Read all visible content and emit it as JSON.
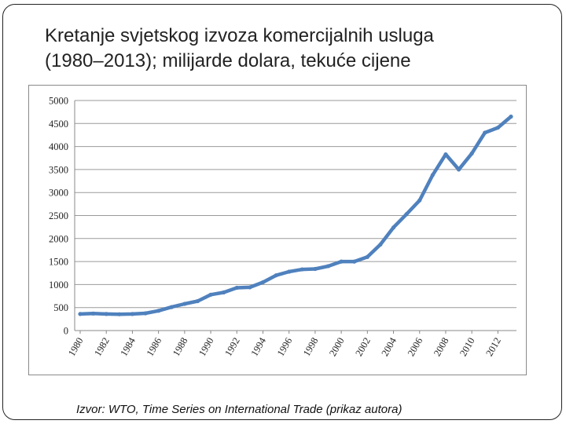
{
  "slide": {
    "title_line1": "Kretanje svjetskog izvoza komercijalnih usluga",
    "title_line2": "(1980–2013); milijarde dolara, tekuće cijene",
    "source": "Izvor: WTO, Time Series on International Trade (prikaz autora)"
  },
  "chart_data": {
    "type": "line",
    "title": "",
    "xlabel": "",
    "ylabel": "",
    "ylim": [
      0,
      5000
    ],
    "yticks": [
      0,
      500,
      1000,
      1500,
      2000,
      2500,
      3000,
      3500,
      4000,
      4500,
      5000
    ],
    "xlim": [
      1980,
      2013
    ],
    "xticks": [
      1980,
      1982,
      1984,
      1986,
      1988,
      1990,
      1992,
      1994,
      1996,
      1998,
      2000,
      2002,
      2004,
      2006,
      2008,
      2010,
      2012
    ],
    "grid": true,
    "legend": "none",
    "line_color": "#4F81BD",
    "series": [
      {
        "x": [
          1980,
          1981,
          1982,
          1983,
          1984,
          1985,
          1986,
          1987,
          1988,
          1989,
          1990,
          1991,
          1992,
          1993,
          1994,
          1995,
          1996,
          1997,
          1998,
          1999,
          2000,
          2001,
          2002,
          2003,
          2004,
          2005,
          2006,
          2007,
          2008,
          2009,
          2010,
          2011,
          2012,
          2013
        ],
        "values": [
          360,
          370,
          360,
          355,
          360,
          375,
          430,
          510,
          580,
          640,
          780,
          830,
          930,
          940,
          1050,
          1200,
          1280,
          1330,
          1340,
          1400,
          1500,
          1500,
          1600,
          1870,
          2240,
          2530,
          2830,
          3380,
          3830,
          3500,
          3850,
          4300,
          4410,
          4650
        ]
      }
    ]
  }
}
